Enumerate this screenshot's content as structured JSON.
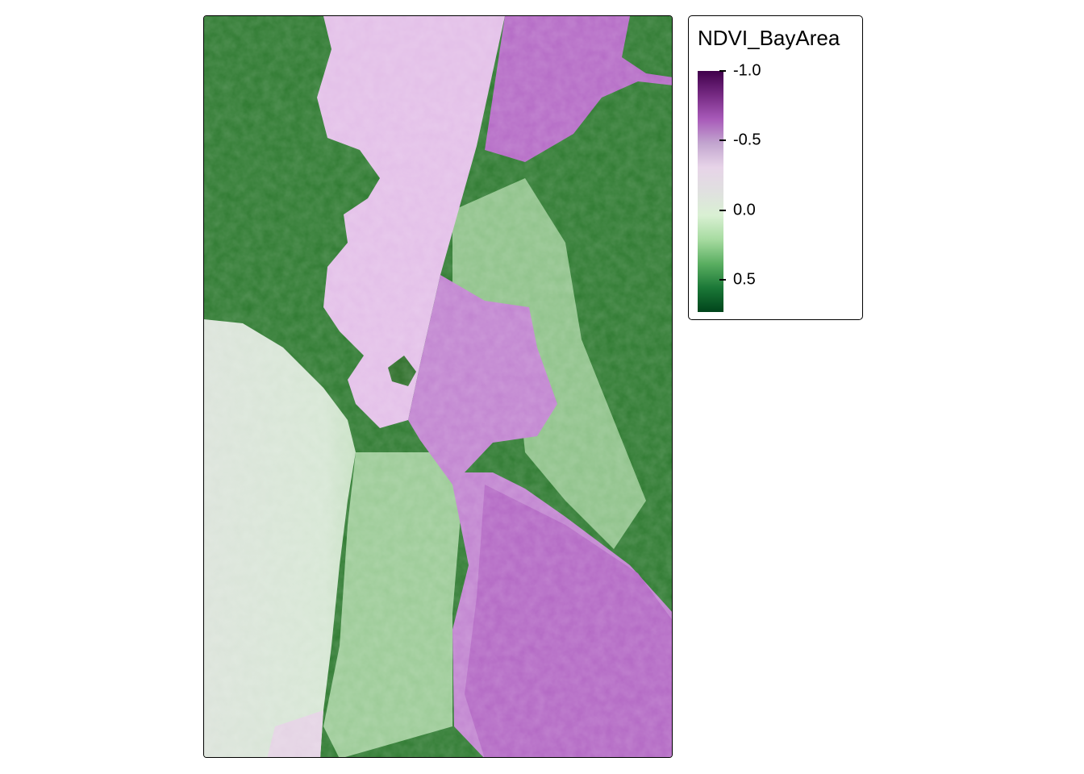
{
  "map": {
    "layer": "NDVI_BayArea",
    "colors": {
      "land_vegetation": "#2e7a30",
      "urban": "#a8cfa3",
      "fog": "#d9e5d8",
      "water_light": "#e3bfe8",
      "water": "#b96fc9",
      "water_dark": "#a85ab9"
    }
  },
  "legend": {
    "title": "NDVI_BayArea",
    "palette": [
      "#40004b",
      "#762a83",
      "#a85ab9",
      "#c2a5cf",
      "#e7d4e8",
      "#e0e0e0",
      "#d9f0d3",
      "#a6dba0",
      "#5aae61",
      "#1b7837",
      "#00441b"
    ],
    "range": [
      -1.0,
      0.73
    ],
    "ticks": [
      {
        "value": -1.0,
        "label": "-1.0"
      },
      {
        "value": -0.5,
        "label": "-0.5"
      },
      {
        "value": 0.0,
        "label": "0.0"
      },
      {
        "value": 0.5,
        "label": "0.5"
      }
    ]
  }
}
